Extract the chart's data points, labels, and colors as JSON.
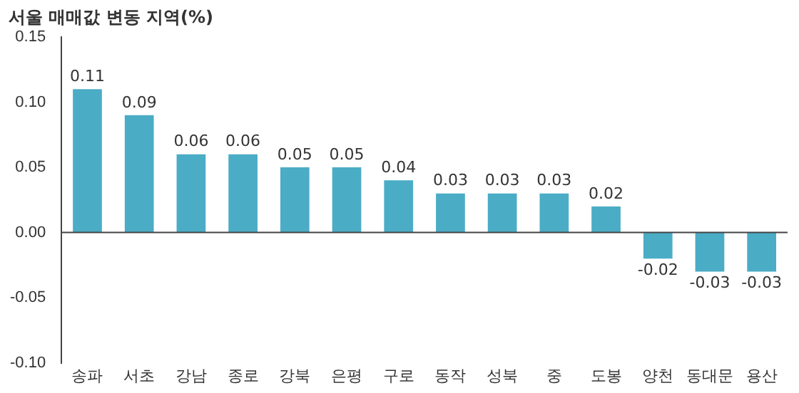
{
  "chart_data": {
    "type": "bar",
    "title": "서울 매매값 변동 지역(%)",
    "categories": [
      "송파",
      "서초",
      "강남",
      "종로",
      "강북",
      "은평",
      "구로",
      "동작",
      "성북",
      "중",
      "도봉",
      "양천",
      "동대문",
      "용산"
    ],
    "values": [
      0.11,
      0.09,
      0.06,
      0.06,
      0.05,
      0.05,
      0.04,
      0.03,
      0.03,
      0.03,
      0.02,
      -0.02,
      -0.03,
      -0.03
    ],
    "color": "#4bacc6",
    "ylim": [
      -0.1,
      0.15
    ],
    "yticks": [
      {
        "value": -0.1,
        "label": "-0.10"
      },
      {
        "value": -0.05,
        "label": "-0.05"
      },
      {
        "value": 0,
        "label": "0.00"
      },
      {
        "value": 0.05,
        "label": "0.05"
      },
      {
        "value": 0.1,
        "label": "0.10"
      },
      {
        "value": 0.15,
        "label": "0.15"
      }
    ],
    "ref_lines": [
      {
        "axis": "y",
        "value": 0,
        "color": "#444444"
      }
    ],
    "legend": false,
    "data_labels": true
  }
}
